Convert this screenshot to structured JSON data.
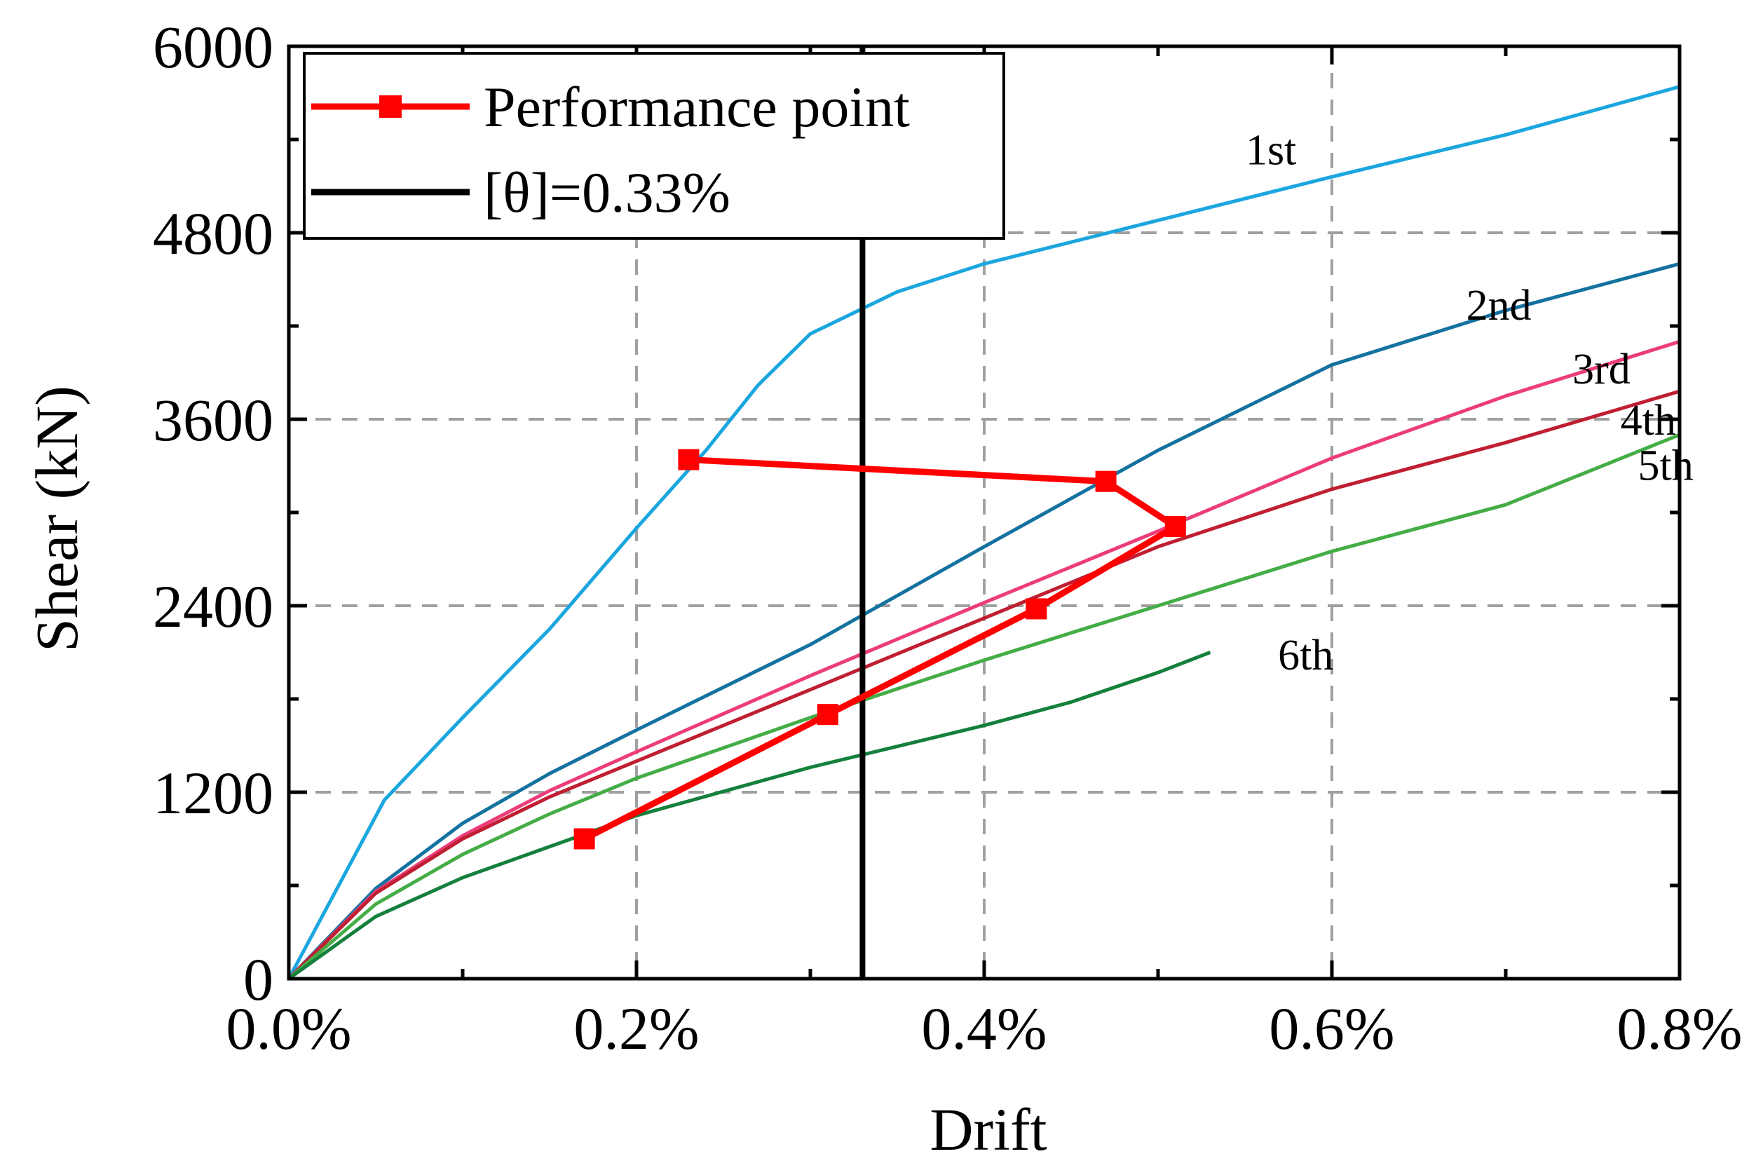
{
  "chart_data": {
    "type": "line",
    "title": "",
    "xlabel": "Drift",
    "ylabel": "Shear (kN)",
    "xlim": [
      0,
      0.8
    ],
    "ylim": [
      0,
      6000
    ],
    "x_unit": "%",
    "x_ticks": [
      0.0,
      0.2,
      0.4,
      0.6,
      0.8
    ],
    "x_tick_labels": [
      "0.0%",
      "0.2%",
      "0.4%",
      "0.6%",
      "0.8%"
    ],
    "y_ticks": [
      0,
      1200,
      2400,
      3600,
      4800,
      6000
    ],
    "y_tick_labels": [
      "0",
      "1200",
      "2400",
      "3600",
      "4800",
      "6000"
    ],
    "grid": "dashed",
    "legend_position": "top-left",
    "legend": [
      {
        "label": "Performance point",
        "color": "#ff0000",
        "marker": "square"
      },
      {
        "label": "[θ]=0.33%",
        "color": "#000000",
        "marker": "none"
      }
    ],
    "series": [
      {
        "name": "1st",
        "color": "#1aa6de",
        "points": [
          [
            0,
            0
          ],
          [
            0.055,
            1150
          ],
          [
            0.1,
            1680
          ],
          [
            0.15,
            2250
          ],
          [
            0.2,
            2900
          ],
          [
            0.24,
            3400
          ],
          [
            0.27,
            3820
          ],
          [
            0.3,
            4150
          ],
          [
            0.35,
            4420
          ],
          [
            0.4,
            4600
          ],
          [
            0.5,
            4880
          ],
          [
            0.6,
            5160
          ],
          [
            0.7,
            5430
          ],
          [
            0.8,
            5740
          ]
        ]
      },
      {
        "name": "2nd",
        "color": "#1472a0",
        "points": [
          [
            0,
            0
          ],
          [
            0.05,
            580
          ],
          [
            0.1,
            1000
          ],
          [
            0.15,
            1320
          ],
          [
            0.2,
            1600
          ],
          [
            0.3,
            2150
          ],
          [
            0.4,
            2780
          ],
          [
            0.5,
            3400
          ],
          [
            0.6,
            3950
          ],
          [
            0.7,
            4300
          ],
          [
            0.8,
            4600
          ]
        ]
      },
      {
        "name": "3rd",
        "color": "#ec3c7a",
        "points": [
          [
            0,
            0
          ],
          [
            0.05,
            560
          ],
          [
            0.1,
            920
          ],
          [
            0.15,
            1210
          ],
          [
            0.2,
            1460
          ],
          [
            0.3,
            1950
          ],
          [
            0.4,
            2420
          ],
          [
            0.5,
            2880
          ],
          [
            0.6,
            3350
          ],
          [
            0.7,
            3750
          ],
          [
            0.8,
            4100
          ]
        ]
      },
      {
        "name": "4th",
        "color": "#c01e32",
        "points": [
          [
            0,
            0
          ],
          [
            0.05,
            550
          ],
          [
            0.1,
            900
          ],
          [
            0.15,
            1170
          ],
          [
            0.2,
            1400
          ],
          [
            0.3,
            1860
          ],
          [
            0.4,
            2320
          ],
          [
            0.5,
            2780
          ],
          [
            0.6,
            3150
          ],
          [
            0.7,
            3450
          ],
          [
            0.8,
            3780
          ]
        ]
      },
      {
        "name": "5th",
        "color": "#44ad46",
        "points": [
          [
            0,
            0
          ],
          [
            0.05,
            480
          ],
          [
            0.1,
            800
          ],
          [
            0.15,
            1060
          ],
          [
            0.2,
            1290
          ],
          [
            0.3,
            1680
          ],
          [
            0.4,
            2050
          ],
          [
            0.5,
            2400
          ],
          [
            0.6,
            2750
          ],
          [
            0.7,
            3050
          ],
          [
            0.8,
            3500
          ]
        ]
      },
      {
        "name": "6th",
        "color": "#14803c",
        "points": [
          [
            0,
            0
          ],
          [
            0.05,
            400
          ],
          [
            0.1,
            650
          ],
          [
            0.15,
            850
          ],
          [
            0.2,
            1050
          ],
          [
            0.3,
            1360
          ],
          [
            0.4,
            1630
          ],
          [
            0.45,
            1780
          ],
          [
            0.5,
            1970
          ],
          [
            0.53,
            2100
          ]
        ]
      }
    ],
    "performance_points": [
      [
        0.17,
        900
      ],
      [
        0.31,
        1700
      ],
      [
        0.43,
        2380
      ],
      [
        0.51,
        2910
      ],
      [
        0.47,
        3200
      ],
      [
        0.23,
        3340
      ]
    ],
    "limit_line": {
      "label": "[θ]=0.33%",
      "x": 0.33
    },
    "curve_labels": [
      "1st",
      "2nd",
      "3rd",
      "4th",
      "5th",
      "6th"
    ]
  },
  "colors": {
    "performance": "#ff0000",
    "limit": "#000000",
    "grid": "#a0a0a0"
  }
}
